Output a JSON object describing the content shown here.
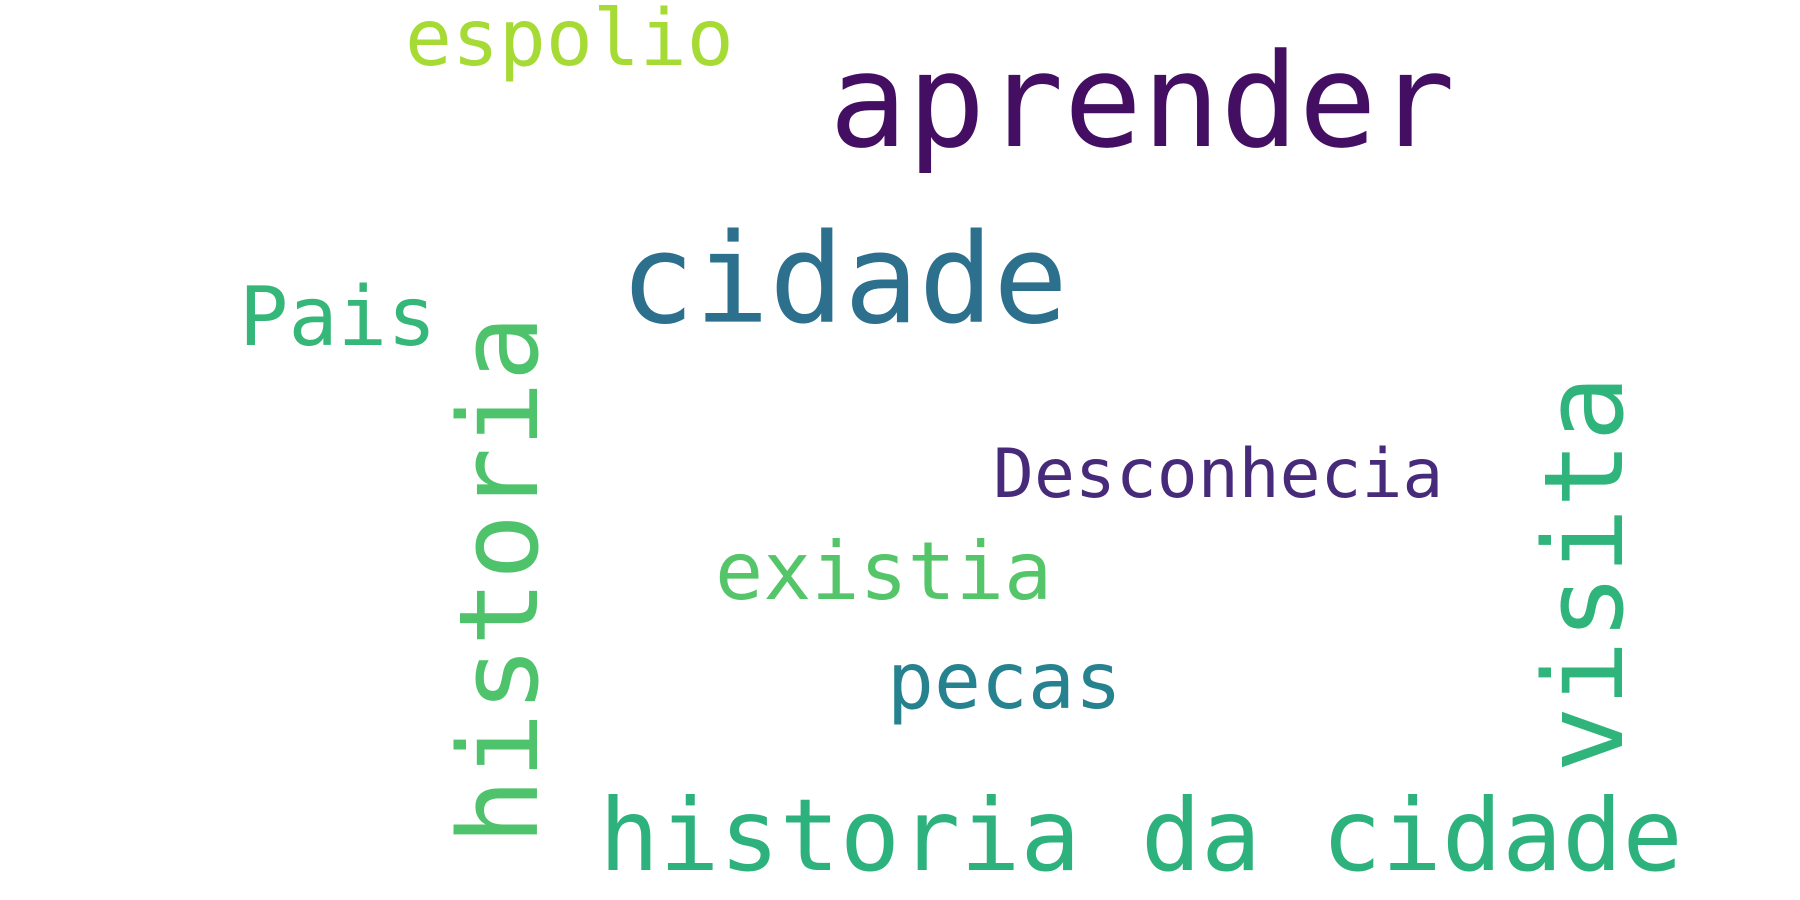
{
  "words": [
    {
      "text": "aprender",
      "color": "#440f62"
    },
    {
      "text": "espolio",
      "color": "#a6db35"
    },
    {
      "text": "cidade",
      "color": "#2d708e"
    },
    {
      "text": "Pais",
      "color": "#35b779"
    },
    {
      "text": "historia",
      "color": "#4ec36b"
    },
    {
      "text": "Desconhecia",
      "color": "#472a7a"
    },
    {
      "text": "existia",
      "color": "#54c568"
    },
    {
      "text": "pecas",
      "color": "#26828e"
    },
    {
      "text": "visita",
      "color": "#2fb47c"
    },
    {
      "text": "historia da cidade",
      "color": "#2db27d"
    }
  ]
}
